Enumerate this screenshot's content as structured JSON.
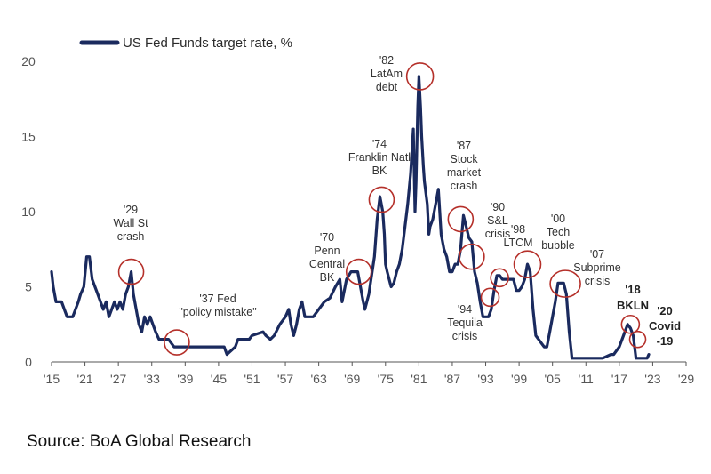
{
  "chart_data": {
    "type": "line",
    "legend": "US Fed Funds target rate, %",
    "legend_position": "top-left",
    "grid": false,
    "xlim": [
      1915,
      2029
    ],
    "ylim": [
      0,
      20
    ],
    "x_ticks": [
      "'15",
      "'21",
      "'27",
      "'33",
      "'39",
      "'45",
      "'51",
      "'57",
      "'63",
      "'69",
      "'75",
      "'81",
      "'87",
      "'93",
      "'99",
      "'05",
      "'11",
      "'17",
      "'23",
      "'29"
    ],
    "y_ticks": [
      "0",
      "5",
      "10",
      "15",
      "20"
    ],
    "colors": {
      "line": "#1a2a5e",
      "circle": "#b5302a",
      "axis": "#555555"
    },
    "series": [
      {
        "name": "US Fed Funds target rate, %",
        "x": [
          1915,
          1915.3,
          1915.8,
          1916.8,
          1917.3,
          1917.8,
          1918.8,
          1919.8,
          1920.2,
          1920.8,
          1921.3,
          1921.8,
          1922.3,
          1923.3,
          1924.3,
          1924.8,
          1925.3,
          1925.8,
          1926.3,
          1926.8,
          1927.3,
          1927.8,
          1928.3,
          1928.8,
          1929.3,
          1929.7,
          1930.2,
          1930.7,
          1931.2,
          1931.7,
          1932.2,
          1932.7,
          1933.2,
          1933.7,
          1934.3,
          1935,
          1936,
          1937,
          1938,
          1939,
          1942,
          1946,
          1946.5,
          1948,
          1948.5,
          1949.5,
          1950.5,
          1951,
          1953,
          1953.5,
          1954.3,
          1955,
          1956,
          1957,
          1957.6,
          1958,
          1958.5,
          1959,
          1959.5,
          1960,
          1960.5,
          1961,
          1962,
          1963,
          1964,
          1965,
          1966,
          1966.8,
          1967.2,
          1968,
          1968.8,
          1969.5,
          1970,
          1970.5,
          1971,
          1971.3,
          1972,
          1973,
          1973.5,
          1974,
          1974.5,
          1974.8,
          1975,
          1975.3,
          1976,
          1976.5,
          1977,
          1977.5,
          1978,
          1978.5,
          1979,
          1979.5,
          1980,
          1980.3,
          1980.5,
          1980.8,
          1981,
          1981.3,
          1981.5,
          1981.8,
          1982,
          1982.5,
          1982.8,
          1983,
          1983.5,
          1984,
          1984.5,
          1985,
          1985.5,
          1986,
          1986.5,
          1987,
          1987.5,
          1988,
          1988.5,
          1989,
          1989.5,
          1990,
          1990.5,
          1991,
          1991.5,
          1992,
          1992.5,
          1993,
          1993.5,
          1994,
          1994.5,
          1995,
          1995.5,
          1996,
          1997,
          1998,
          1998.5,
          1999,
          1999.5,
          2000,
          2000.5,
          2001,
          2001.5,
          2002,
          2002.5,
          2003,
          2003.5,
          2004,
          2004.5,
          2005,
          2005.5,
          2006,
          2006.5,
          2007,
          2007.5,
          2008,
          2008.5,
          2009,
          2010,
          2012,
          2014,
          2015.5,
          2016,
          2016.5,
          2017,
          2017.5,
          2018,
          2018.5,
          2019,
          2019.5,
          2020,
          2020.2,
          2021,
          2022,
          2022.3
        ],
        "values": [
          6.0,
          5.0,
          4.0,
          4.0,
          3.5,
          3.0,
          3.0,
          4.0,
          4.5,
          5.0,
          7.0,
          7.0,
          5.5,
          4.5,
          3.5,
          4.0,
          3.0,
          3.5,
          4.0,
          3.5,
          4.0,
          3.5,
          4.5,
          5.0,
          6.0,
          4.5,
          3.5,
          2.5,
          2.0,
          3.0,
          2.5,
          3.0,
          2.5,
          2.0,
          1.5,
          1.5,
          1.5,
          1.0,
          1.0,
          1.0,
          1.0,
          1.0,
          0.5,
          1.0,
          1.5,
          1.5,
          1.5,
          1.75,
          2.0,
          1.75,
          1.5,
          1.75,
          2.5,
          3.0,
          3.5,
          2.5,
          1.75,
          2.5,
          3.5,
          4.0,
          3.0,
          3.0,
          3.0,
          3.5,
          4.0,
          4.25,
          5.0,
          5.5,
          4.0,
          5.5,
          6.0,
          6.0,
          6.0,
          5.0,
          4.0,
          3.5,
          4.5,
          7.0,
          9.5,
          11.0,
          10.0,
          8.5,
          6.5,
          6.0,
          5.0,
          5.25,
          6.0,
          6.5,
          7.5,
          9.0,
          10.5,
          12.5,
          15.5,
          10.0,
          12.0,
          17.0,
          19.0,
          17.0,
          15.0,
          13.0,
          12.0,
          10.5,
          8.5,
          9.0,
          9.5,
          10.5,
          11.5,
          8.5,
          7.5,
          7.0,
          6.0,
          6.0,
          6.5,
          6.5,
          7.5,
          9.75,
          9.0,
          8.25,
          8.0,
          6.0,
          5.25,
          4.0,
          3.0,
          3.0,
          3.0,
          3.5,
          4.75,
          5.75,
          5.75,
          5.5,
          5.5,
          5.5,
          4.75,
          4.75,
          5.0,
          5.5,
          6.5,
          6.0,
          3.5,
          1.75,
          1.5,
          1.25,
          1.0,
          1.0,
          2.0,
          3.0,
          4.0,
          5.25,
          5.25,
          5.25,
          4.5,
          2.0,
          0.25,
          0.25,
          0.25,
          0.25,
          0.25,
          0.5,
          0.5,
          0.75,
          1.0,
          1.5,
          2.0,
          2.5,
          2.25,
          1.75,
          0.25,
          0.25,
          0.25,
          0.25,
          0.5
        ]
      }
    ],
    "annotations": [
      {
        "label": "'29\nWall St\ncrash",
        "x": 1929.3,
        "y": 6.0
      },
      {
        "label": "'37 Fed\n\"policy mistake\"",
        "x": 1937.5,
        "y": 1.3
      },
      {
        "label": "'70\nPenn\nCentral\nBK",
        "x": 1970.2,
        "y": 6.0
      },
      {
        "label": "'74\nFranklin Natl\nBK",
        "x": 1974.3,
        "y": 10.8
      },
      {
        "label": "'82\nLatAm\ndebt",
        "x": 1981.2,
        "y": 19.0
      },
      {
        "label": "'87\nStock\nmarket\ncrash",
        "x": 1988.5,
        "y": 9.5
      },
      {
        "label": "'90\nS&L\ncrisis",
        "x": 1990.5,
        "y": 7.0
      },
      {
        "label": "'94\nTequila\ncrisis",
        "x": 1993.8,
        "y": 4.3
      },
      {
        "label": "'98\nLTCM",
        "x": 1995.5,
        "y": 5.6
      },
      {
        "label": "'00\nTech\nbubble",
        "x": 2000.5,
        "y": 6.5
      },
      {
        "label": "'07\nSubprime\ncrisis",
        "x": 2007.3,
        "y": 5.2
      },
      {
        "label": "'18\nBKLN",
        "x": 2019.0,
        "y": 2.5
      },
      {
        "label": "'20\nCovid\n-19",
        "x": 2020.3,
        "y": 1.5
      }
    ]
  },
  "source_text": "Source: BoA Global Research"
}
